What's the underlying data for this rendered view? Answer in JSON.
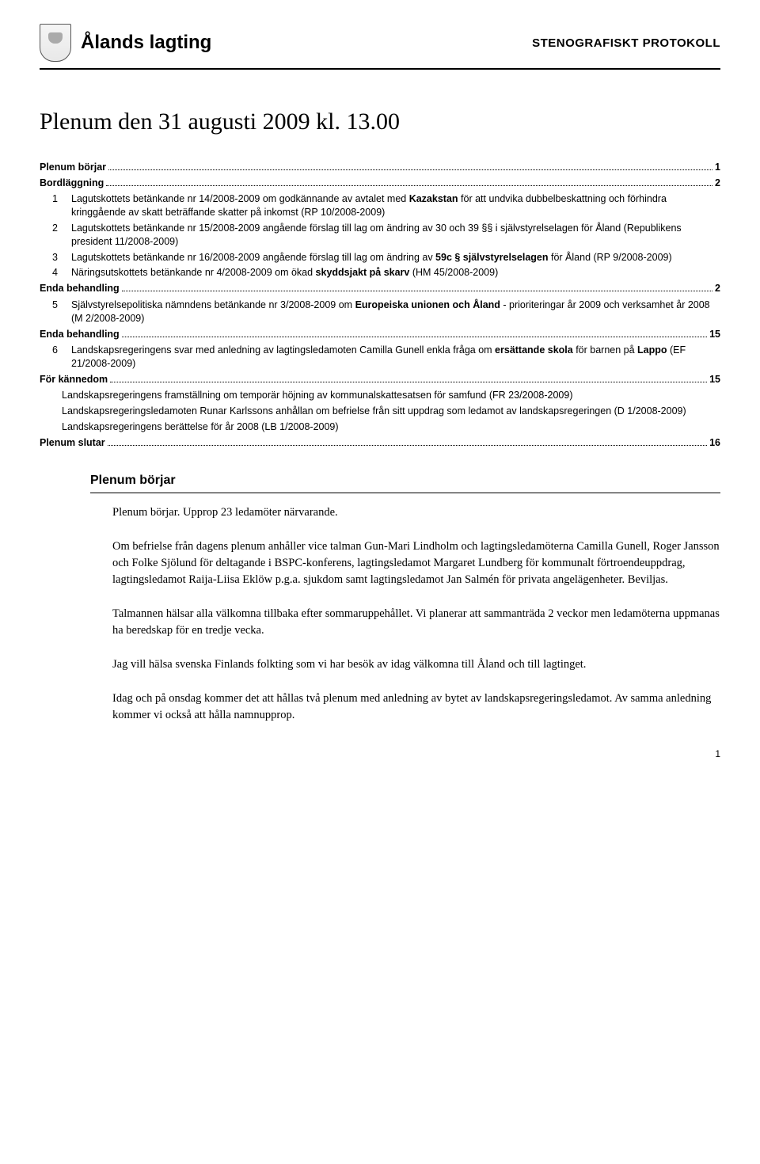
{
  "header": {
    "org_name": "Ålands lagting",
    "protocol_label": "STENOGRAFISKT PROTOKOLL"
  },
  "title": "Plenum den 31 augusti 2009 kl. 13.00",
  "toc": [
    {
      "type": "row",
      "label": "Plenum börjar",
      "page": "1"
    },
    {
      "type": "row",
      "label": "Bordläggning",
      "page": "2"
    },
    {
      "type": "item",
      "num": "1",
      "text": "Lagutskottets betänkande nr 14/2008-2009 om godkännande av avtalet med <b>Kazakstan</b> för att undvika dubbelbeskattning och förhindra kringgående av skatt beträffande skatter på inkomst (RP 10/2008-2009)"
    },
    {
      "type": "item",
      "num": "2",
      "text": "Lagutskottets betänkande nr 15/2008-2009 angående förslag till lag om ändring av 30 och 39 §§ i självstyrelselagen för Åland (Republikens president 11/2008-2009)"
    },
    {
      "type": "item",
      "num": "3",
      "text": "Lagutskottets betänkande nr 16/2008-2009 angående förslag till lag om ändring av <b>59c § självstyrelselagen</b> för Åland (RP 9/2008-2009)"
    },
    {
      "type": "item",
      "num": "4",
      "text": "Näringsutskottets betänkande nr 4/2008-2009 om ökad <b>skyddsjakt på skarv</b> (HM 45/2008-2009)"
    },
    {
      "type": "row",
      "label": "Enda behandling",
      "page": "2"
    },
    {
      "type": "item",
      "num": "5",
      "text": "Självstyrelsepolitiska nämndens betänkande nr 3/2008-2009 om <b>Europeiska unionen och Åland</b> - prioriteringar år 2009 och verksamhet år 2008 (M 2/2008-2009)"
    },
    {
      "type": "row",
      "label": "Enda behandling",
      "page": "15"
    },
    {
      "type": "item",
      "num": "6",
      "text": "Landskapsregeringens svar med anledning av lagtingsledamoten Camilla Gunell enkla fråga om <b>ersättande skola</b> för barnen på <b>Lappo</b> (EF 21/2008-2009)"
    },
    {
      "type": "row",
      "label": "För kännedom",
      "page": "15"
    },
    {
      "type": "sub",
      "text": "Landskapsregeringens framställning om temporär höjning av kommunalskattesatsen för samfund (FR 23/2008-2009)"
    },
    {
      "type": "sub",
      "text": "Landskapsregeringsledamoten Runar Karlssons anhållan om befrielse från sitt uppdrag som ledamot av landskapsregeringen (D 1/2008-2009)"
    },
    {
      "type": "sub",
      "text": "Landskapsregeringens berättelse för år 2008 (LB 1/2008-2009)"
    },
    {
      "type": "row",
      "label": "Plenum slutar",
      "page": "16"
    }
  ],
  "section": {
    "heading": "Plenum börjar",
    "paragraphs": [
      "Plenum börjar. Upprop 23 ledamöter närvarande.",
      "Om befrielse från dagens plenum anhåller vice talman Gun-Mari Lindholm och lagtingsledamöterna Camilla Gunell, Roger Jansson och Folke Sjölund för deltagande i BSPC-konferens, lagtingsledamot Margaret Lundberg för kommunalt förtroendeuppdrag, lagtingsledamot Raija-Liisa Eklöw p.g.a. sjukdom samt lagtingsledamot Jan Salmén för privata angelägenheter. Beviljas.",
      "Talmannen hälsar alla välkomna tillbaka efter sommaruppehållet. Vi planerar att sammanträda 2 veckor men ledamöterna uppmanas ha beredskap för en tredje vecka.",
      "Jag vill hälsa svenska Finlands folkting som vi har besök av idag välkomna till Åland och till lagtinget.",
      "Idag och på onsdag kommer det att hållas två plenum med anledning av bytet av landskapsregeringsledamot. Av samma anledning kommer vi också att hålla namnupprop."
    ]
  },
  "page_number": "1"
}
